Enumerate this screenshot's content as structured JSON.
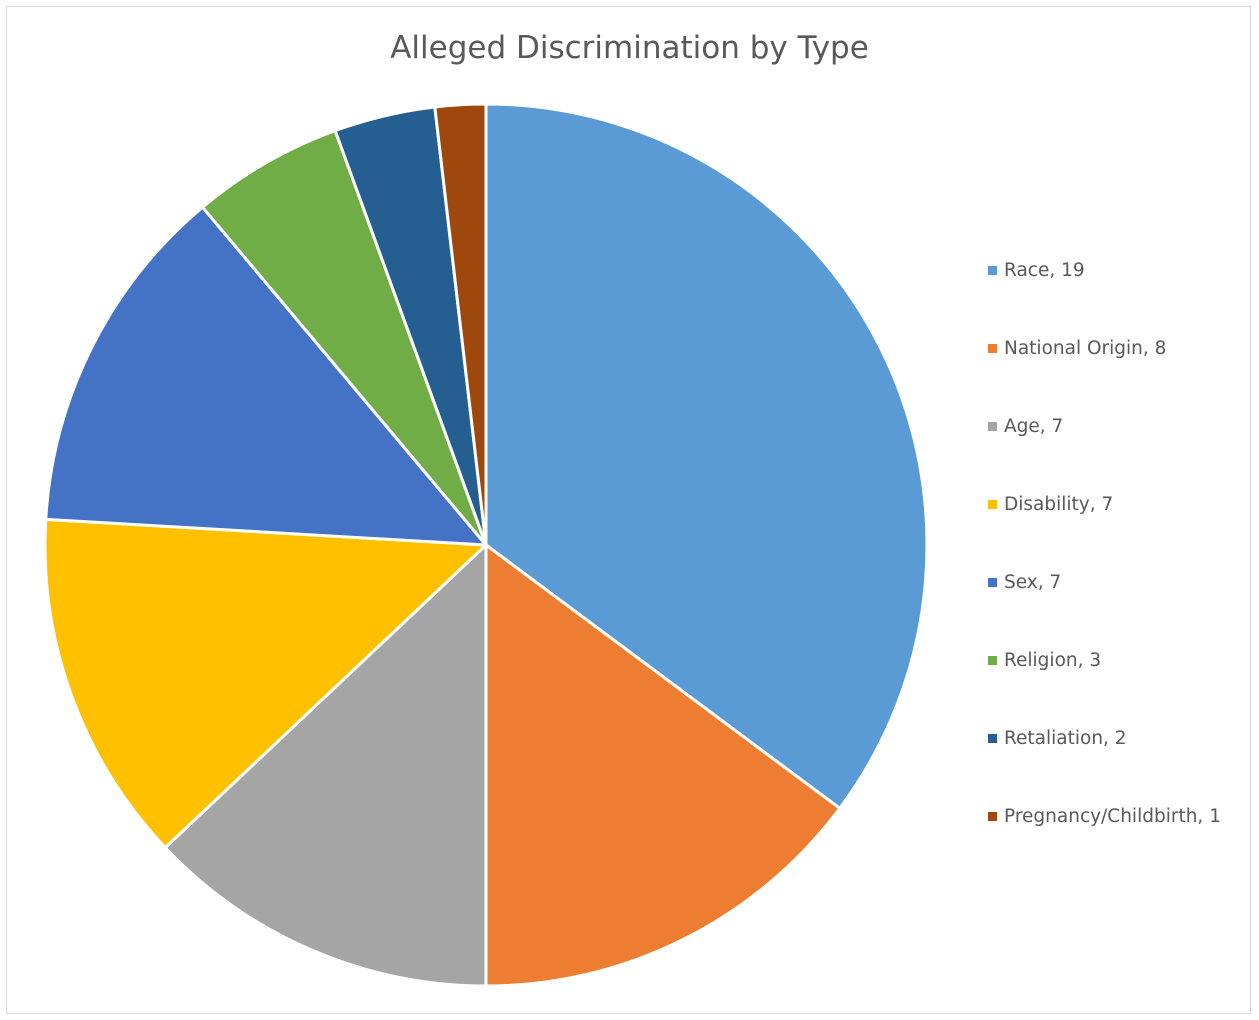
{
  "chart_data": {
    "type": "pie",
    "title": "Alleged Discrimination by Type",
    "slices": [
      {
        "label": "Race",
        "value": 19,
        "legend_text": "Race, 19",
        "color": "#5b9bd5"
      },
      {
        "label": "National Origin",
        "value": 8,
        "legend_text": "National Origin, 8",
        "color": "#ed7d31"
      },
      {
        "label": "Age",
        "value": 7,
        "legend_text": "Age, 7",
        "color": "#a5a5a5"
      },
      {
        "label": "Disability",
        "value": 7,
        "legend_text": "Disability, 7",
        "color": "#ffc000"
      },
      {
        "label": "Sex",
        "value": 7,
        "legend_text": "Sex, 7",
        "color": "#4472c4"
      },
      {
        "label": "Religion",
        "value": 3,
        "legend_text": "Religion, 3",
        "color": "#70ad47"
      },
      {
        "label": "Retaliation",
        "value": 2,
        "legend_text": "Retaliation, 2",
        "color": "#255e91"
      },
      {
        "label": "Pregnancy/Childbirth",
        "value": 1,
        "legend_text": "Pregnancy/Childbirth, 1",
        "color": "#9e480e"
      }
    ],
    "legend_position": "right",
    "slice_border_color": "#ffffff"
  }
}
